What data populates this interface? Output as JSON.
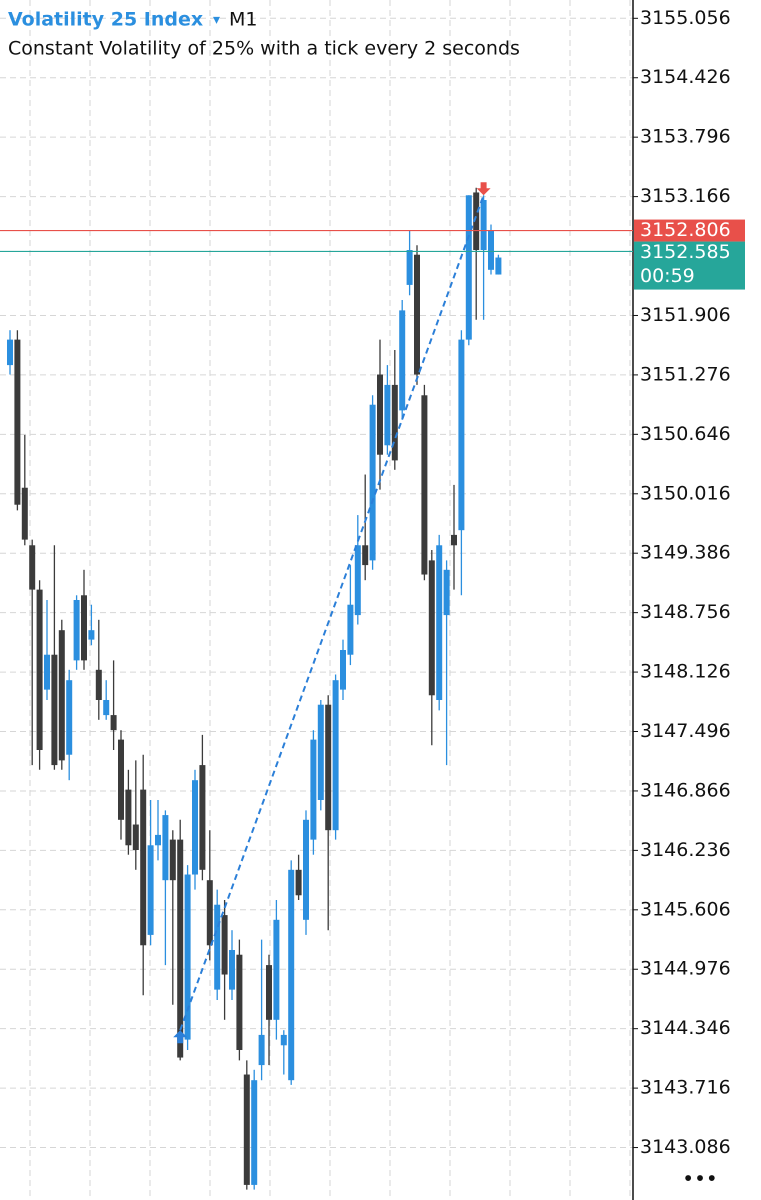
{
  "chart_data": {
    "type": "candlestick",
    "title": "Volatility 25 Index",
    "dropdown": "▾",
    "timeframe": "M1",
    "subtitle": "Constant Volatility of 25% with a tick every 2 seconds",
    "menu": "•••",
    "up_color": "#2b8fdf",
    "down_color": "#3b3b3b",
    "ylim": [
      3142.53,
      3155.25
    ],
    "yticks": [
      3155.056,
      3154.426,
      3153.796,
      3153.166,
      3151.906,
      3151.276,
      3150.646,
      3150.016,
      3149.386,
      3148.756,
      3148.126,
      3147.496,
      3146.866,
      3146.236,
      3145.606,
      3144.976,
      3144.346,
      3143.716,
      3143.086
    ],
    "grid": true,
    "open": [
      3151.38,
      3151.65,
      3150.08,
      3149.47,
      3149.0,
      3147.94,
      3148.31,
      3148.57,
      3147.25,
      3148.25,
      3148.94,
      3148.47,
      3148.15,
      3147.67,
      3147.67,
      3147.41,
      3146.88,
      3146.51,
      3146.88,
      3145.34,
      3146.29,
      3145.92,
      3146.35,
      3146.35,
      3144.23,
      3145.98,
      3147.14,
      3145.92,
      3144.76,
      3145.55,
      3144.76,
      3145.13,
      3143.86,
      3142.69,
      3143.96,
      3145.02,
      3144.44,
      3144.17,
      3143.8,
      3146.03,
      3145.5,
      3146.35,
      3146.77,
      3147.78,
      3146.45,
      3147.94,
      3148.31,
      3148.73,
      3149.47,
      3149.31,
      3151.28,
      3150.53,
      3151.17,
      3150.9,
      3152.23,
      3152.55,
      3151.06,
      3149.31,
      3147.83,
      3148.73,
      3149.58,
      3149.63,
      3151.65,
      3153.21,
      3152.6,
      3152.39,
      3152.34
    ],
    "high": [
      3151.75,
      3151.75,
      3150.64,
      3149.53,
      3149.1,
      3148.89,
      3149.47,
      3148.68,
      3148.15,
      3148.94,
      3149.21,
      3148.84,
      3148.68,
      3148.04,
      3148.25,
      3147.51,
      3147.09,
      3147.19,
      3147.25,
      3146.77,
      3146.77,
      3146.66,
      3146.45,
      3146.56,
      3146.08,
      3147.09,
      3147.46,
      3146.45,
      3145.82,
      3145.71,
      3145.39,
      3145.29,
      3144.01,
      3143.91,
      3145.29,
      3145.13,
      3145.71,
      3144.33,
      3146.13,
      3146.19,
      3146.66,
      3147.51,
      3147.83,
      3147.88,
      3148.1,
      3148.47,
      3149.26,
      3149.79,
      3150.22,
      3151.06,
      3151.65,
      3151.38,
      3151.54,
      3152.07,
      3152.81,
      3152.65,
      3151.17,
      3149.42,
      3149.58,
      3149.31,
      3150.11,
      3151.75,
      3153.18,
      3153.26,
      3153.18,
      3152.87,
      3152.55
    ],
    "low": [
      3151.28,
      3149.84,
      3149.47,
      3147.14,
      3147.09,
      3147.83,
      3147.09,
      3147.09,
      3146.98,
      3148.15,
      3148.15,
      3148.41,
      3147.62,
      3147.62,
      3147.3,
      3146.35,
      3146.19,
      3146.03,
      3144.7,
      3145.23,
      3146.13,
      3145.02,
      3144.6,
      3144.01,
      3144.12,
      3145.82,
      3145.92,
      3145.07,
      3144.65,
      3144.44,
      3144.65,
      3144.01,
      3142.64,
      3142.64,
      3143.8,
      3143.96,
      3144.23,
      3143.86,
      3143.75,
      3145.71,
      3145.34,
      3146.19,
      3146.66,
      3145.39,
      3146.35,
      3147.83,
      3148.2,
      3148.63,
      3149.1,
      3149.21,
      3150.06,
      3150.43,
      3150.27,
      3150.8,
      3152.12,
      3151.17,
      3149.1,
      3147.35,
      3147.72,
      3147.14,
      3149.0,
      3148.94,
      3151.59,
      3151.86,
      3151.86,
      3152.34,
      3152.34
    ],
    "close": [
      3151.65,
      3149.9,
      3149.53,
      3149.0,
      3147.3,
      3148.31,
      3147.14,
      3147.19,
      3148.04,
      3148.89,
      3148.25,
      3148.57,
      3147.83,
      3147.83,
      3147.51,
      3146.56,
      3146.29,
      3146.24,
      3145.23,
      3146.29,
      3146.4,
      3146.61,
      3145.92,
      3144.04,
      3145.98,
      3146.98,
      3146.03,
      3145.23,
      3145.66,
      3144.92,
      3145.18,
      3144.12,
      3142.69,
      3143.8,
      3144.28,
      3144.44,
      3145.5,
      3144.28,
      3146.03,
      3145.76,
      3146.56,
      3147.41,
      3147.78,
      3146.45,
      3148.04,
      3148.36,
      3148.84,
      3149.47,
      3149.26,
      3150.96,
      3150.43,
      3151.17,
      3150.37,
      3151.96,
      3152.6,
      3151.28,
      3149.16,
      3147.88,
      3149.47,
      3149.21,
      3149.47,
      3151.65,
      3153.18,
      3152.6,
      3153.13,
      3152.81,
      3152.52
    ],
    "trade": {
      "entry_price": 3144.33,
      "exit_price": 3153.18
    },
    "ask_line": {
      "value": 3152.806,
      "color": "#e8504a"
    },
    "bid_line": {
      "value": 3152.585,
      "color": "#26a69a",
      "countdown": "00:59"
    }
  }
}
